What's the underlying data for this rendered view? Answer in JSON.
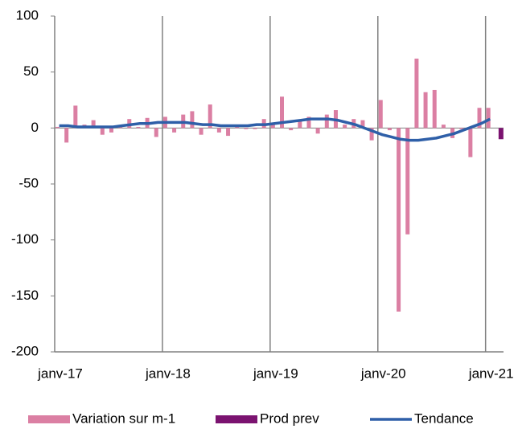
{
  "chart_data": {
    "type": "bar",
    "categories": [
      "janv-17",
      null,
      null,
      null,
      null,
      null,
      null,
      null,
      null,
      null,
      null,
      null,
      "janv-18",
      null,
      null,
      null,
      null,
      null,
      null,
      null,
      null,
      null,
      null,
      null,
      "janv-19",
      null,
      null,
      null,
      null,
      null,
      null,
      null,
      null,
      null,
      null,
      null,
      "janv-20",
      null,
      null,
      null,
      null,
      null,
      null,
      null,
      null,
      null,
      null,
      null,
      "janv-21",
      null
    ],
    "series": [
      {
        "name": "Variation sur m-1",
        "type": "bar",
        "color": "#db7fa3",
        "values": [
          1,
          -13,
          20,
          3,
          7,
          -6,
          -4,
          1,
          8,
          1,
          9,
          -8,
          10,
          -4,
          12,
          15,
          -6,
          21,
          -4,
          -7,
          1,
          -1,
          -1,
          8,
          3,
          28,
          -2,
          7,
          10,
          -5,
          12,
          16,
          3,
          8,
          7,
          -11,
          25,
          -2,
          -164,
          -95,
          62,
          32,
          34,
          3,
          -9,
          -1,
          -26,
          18,
          18,
          null
        ]
      },
      {
        "name": "Prod prev",
        "type": "bar",
        "color": "#7b1370",
        "values": [
          null,
          null,
          null,
          null,
          null,
          null,
          null,
          null,
          null,
          null,
          null,
          null,
          null,
          null,
          null,
          null,
          null,
          null,
          null,
          null,
          null,
          null,
          null,
          null,
          null,
          null,
          null,
          null,
          null,
          null,
          null,
          null,
          null,
          null,
          null,
          null,
          null,
          null,
          null,
          null,
          null,
          null,
          null,
          null,
          null,
          null,
          null,
          null,
          null,
          -10
        ]
      },
      {
        "name": "Tendance",
        "type": "line",
        "color": "#2e5fa8",
        "values": [
          2,
          2,
          1,
          1,
          1,
          1,
          1,
          2,
          3,
          4,
          4,
          5,
          5,
          5,
          5,
          4,
          3,
          3,
          2,
          2,
          2,
          2,
          3,
          3,
          4,
          5,
          6,
          7,
          8,
          8,
          8,
          7,
          5,
          3,
          0,
          -3,
          -6,
          -8,
          -10,
          -11,
          -11,
          -10,
          -9,
          -7,
          -5,
          -2,
          1,
          4,
          8,
          null
        ]
      }
    ],
    "ylim": [
      -200,
      100
    ],
    "yticks": [
      -200,
      -150,
      -100,
      -50,
      0,
      50,
      100
    ],
    "grid": "x",
    "legend": "bottom"
  }
}
